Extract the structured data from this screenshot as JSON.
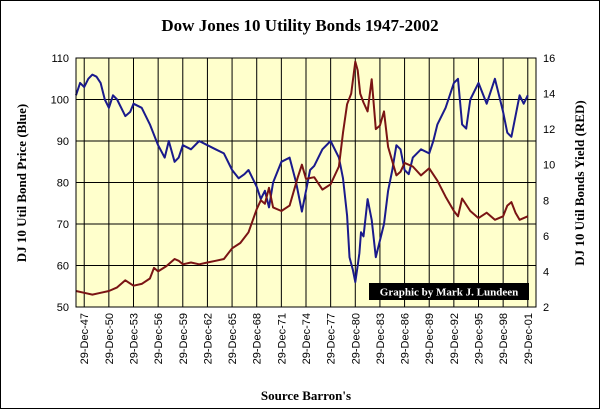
{
  "chart_data": {
    "type": "line",
    "title": "Dow Jones 10 Utility Bonds 1947-2002",
    "xlabel": "Source Barron's",
    "ylabel_left": "DJ 10 Util Bond Price  (Blue)",
    "ylabel_right": "DJ 10 Util Bonds Yield (RED)",
    "credit": "Graphic by Mark J. Lundeen",
    "xlim": [
      1947.0,
      2003.0
    ],
    "ylim_left": [
      50,
      110
    ],
    "ylim_right": [
      2,
      16
    ],
    "left_ticks": [
      "50",
      "60",
      "70",
      "80",
      "90",
      "100",
      "110"
    ],
    "right_ticks": [
      "2",
      "4",
      "6",
      "8",
      "10",
      "12",
      "14",
      "16"
    ],
    "x_tick_labels": [
      "29-Dec-47",
      "29-Dec-50",
      "29-Dec-53",
      "29-Dec-56",
      "29-Dec-59",
      "29-Dec-62",
      "29-Dec-65",
      "29-Dec-68",
      "29-Dec-71",
      "29-Dec-74",
      "29-Dec-77",
      "29-Dec-80",
      "29-Dec-83",
      "29-Dec-86",
      "29-Dec-89",
      "29-Dec-92",
      "29-Dec-95",
      "29-Dec-98",
      "29-Dec-01"
    ],
    "x_tick_years": [
      1948,
      1951,
      1954,
      1957,
      1960,
      1963,
      1966,
      1969,
      1972,
      1975,
      1978,
      1981,
      1984,
      1987,
      1990,
      1993,
      1996,
      1999,
      2002
    ],
    "grid": true,
    "series": [
      {
        "name": "DJ 10 Util Bond Price",
        "axis": "left",
        "color": "#1a1a8c",
        "x": [
          1947.0,
          1947.5,
          1948.0,
          1948.5,
          1949.0,
          1949.5,
          1950.0,
          1950.5,
          1951.0,
          1951.5,
          1952.0,
          1953.0,
          1953.6,
          1954.0,
          1955.0,
          1956.0,
          1957.0,
          1957.8,
          1958.3,
          1959.0,
          1959.5,
          1960.0,
          1961.0,
          1962.0,
          1963.0,
          1964.0,
          1965.0,
          1966.0,
          1966.8,
          1967.5,
          1968.0,
          1969.0,
          1969.5,
          1970.0,
          1970.5,
          1971.0,
          1972.0,
          1973.0,
          1973.8,
          1974.5,
          1975.0,
          1975.5,
          1976.0,
          1977.0,
          1978.0,
          1979.0,
          1979.5,
          1980.0,
          1980.3,
          1980.7,
          1981.0,
          1981.3,
          1981.5,
          1981.7,
          1982.0,
          1982.5,
          1983.0,
          1983.5,
          1984.0,
          1984.5,
          1985.0,
          1985.5,
          1986.0,
          1986.5,
          1987.0,
          1987.5,
          1988.0,
          1989.0,
          1990.0,
          1990.5,
          1991.0,
          1992.0,
          1993.0,
          1993.5,
          1994.0,
          1994.5,
          1995.0,
          1996.0,
          1997.0,
          1998.0,
          1998.5,
          1999.0,
          1999.5,
          2000.0,
          2000.5,
          2001.0,
          2001.5,
          2002.0
        ],
        "values": [
          101,
          104,
          103,
          105,
          106,
          105.5,
          104,
          100,
          98,
          101,
          100,
          96,
          97,
          99,
          98,
          94,
          89,
          86,
          90,
          85,
          86,
          89,
          88,
          90,
          89,
          88,
          87,
          83,
          81,
          82,
          83,
          79,
          76,
          78,
          74,
          80,
          85,
          86,
          80,
          73,
          78,
          83,
          84,
          88,
          90,
          86,
          81,
          72,
          62,
          59,
          56,
          60,
          63,
          68,
          67,
          76,
          71,
          62,
          66,
          70,
          78,
          83,
          89,
          88,
          83,
          82,
          86,
          88,
          87,
          90,
          94,
          98,
          104,
          105,
          94,
          93,
          100,
          104,
          99,
          105,
          101,
          97,
          92,
          91,
          96,
          101,
          99,
          101
        ]
      },
      {
        "name": "DJ 10 Util Bonds Yield",
        "axis": "right",
        "color": "#7a1414",
        "x": [
          1947.0,
          1948.0,
          1949.0,
          1950.0,
          1951.0,
          1952.0,
          1953.0,
          1954.0,
          1955.0,
          1956.0,
          1956.5,
          1957.0,
          1958.0,
          1959.0,
          1959.5,
          1960.0,
          1961.0,
          1962.0,
          1963.0,
          1964.0,
          1965.0,
          1966.0,
          1967.0,
          1968.0,
          1969.0,
          1969.5,
          1970.0,
          1970.5,
          1971.0,
          1972.0,
          1973.0,
          1974.0,
          1974.5,
          1975.0,
          1976.0,
          1977.0,
          1978.0,
          1979.0,
          1979.5,
          1980.0,
          1980.5,
          1981.0,
          1981.3,
          1981.6,
          1982.0,
          1982.5,
          1983.0,
          1983.5,
          1984.0,
          1984.5,
          1985.0,
          1985.5,
          1986.0,
          1986.5,
          1987.0,
          1988.0,
          1989.0,
          1990.0,
          1991.0,
          1992.0,
          1993.0,
          1993.5,
          1994.0,
          1995.0,
          1996.0,
          1997.0,
          1998.0,
          1999.0,
          1999.5,
          2000.0,
          2000.5,
          2001.0,
          2002.0
        ],
        "values": [
          2.9,
          2.8,
          2.7,
          2.8,
          2.9,
          3.1,
          3.5,
          3.2,
          3.3,
          3.6,
          4.2,
          4.0,
          4.3,
          4.7,
          4.6,
          4.4,
          4.5,
          4.4,
          4.5,
          4.6,
          4.7,
          5.3,
          5.6,
          6.2,
          7.5,
          8.0,
          7.8,
          8.7,
          7.6,
          7.4,
          7.7,
          9.3,
          10.0,
          9.2,
          9.3,
          8.6,
          8.9,
          9.9,
          11.8,
          13.4,
          14.0,
          15.8,
          15.3,
          14.0,
          13.5,
          13.0,
          14.8,
          12.0,
          12.2,
          13.0,
          11.0,
          10.2,
          9.4,
          9.6,
          10.1,
          9.9,
          9.4,
          9.8,
          9.1,
          8.2,
          7.4,
          7.1,
          8.1,
          7.4,
          7.0,
          7.3,
          6.9,
          7.1,
          7.7,
          7.9,
          7.3,
          6.9,
          7.1
        ]
      }
    ]
  }
}
